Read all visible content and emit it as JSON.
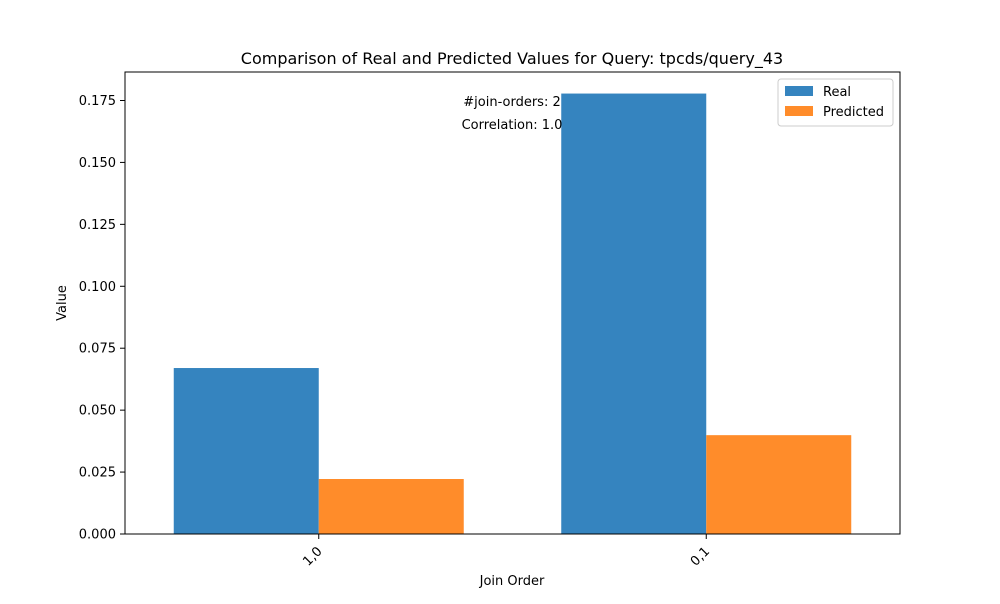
{
  "chart_data": {
    "type": "bar",
    "title": "Comparison of Real and Predicted Values for Query: tpcds/query_43",
    "xlabel": "Join Order",
    "ylabel": "Value",
    "categories": [
      "1,0",
      "0,1"
    ],
    "series": [
      {
        "name": "Real",
        "values": [
          0.067,
          0.1778
        ],
        "color": "#3584bf"
      },
      {
        "name": "Predicted",
        "values": [
          0.0222,
          0.0399
        ],
        "color": "#ff8c2a"
      }
    ],
    "ylim": [
      0,
      0.1865
    ],
    "yticks": [
      "0.000",
      "0.025",
      "0.050",
      "0.075",
      "0.100",
      "0.125",
      "0.150",
      "0.175"
    ],
    "ytick_values": [
      0,
      0.025,
      0.05,
      0.075,
      0.1,
      0.125,
      0.15,
      0.175
    ],
    "annotations": [
      "#join-orders: 2",
      "Correlation: 1.0"
    ],
    "legend_placement": "top-right",
    "grid": false
  }
}
